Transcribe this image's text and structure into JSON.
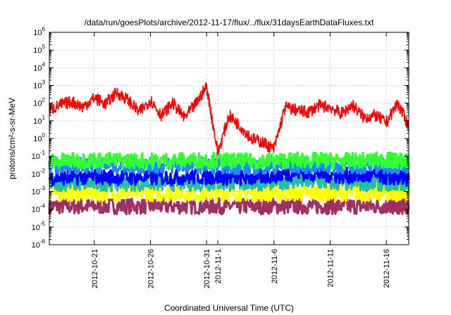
{
  "chart_data": {
    "type": "line",
    "title": "/data/run/goesPlots/archive/2012-11-17/flux/../flux/31daysEarthDataFluxes.txt",
    "xlabel": "Coordinated Universal Time (UTC)",
    "ylabel": "protons/cm²-s-sr-MeV",
    "yscale": "log",
    "grid": true,
    "xlim": [
      "2012-10-17",
      "2012-11-18"
    ],
    "ylim": [
      1e-06,
      1000000.0
    ],
    "x_ticks": [
      {
        "date": "2012-10-21",
        "label": "2012-10-21"
      },
      {
        "date": "2012-10-26",
        "label": "2012-10-26"
      },
      {
        "date": "2012-10-31",
        "label": "2012-10-31"
      },
      {
        "date": "2012-11-01",
        "label": "2012-11-1"
      },
      {
        "date": "2012-11-06",
        "label": "2012-11-6"
      },
      {
        "date": "2012-11-11",
        "label": "2012-11-11"
      },
      {
        "date": "2012-11-16",
        "label": "2012-11-16"
      }
    ],
    "y_ticks": [
      {
        "value": 1e-06,
        "exp": "-6"
      },
      {
        "value": 1e-05,
        "exp": "-5"
      },
      {
        "value": 0.0001,
        "exp": "-4"
      },
      {
        "value": 0.001,
        "exp": "-3"
      },
      {
        "value": 0.01,
        "exp": "-2"
      },
      {
        "value": 0.1,
        "exp": "-1"
      },
      {
        "value": 1,
        "exp": "0"
      },
      {
        "value": 10,
        "exp": "1"
      },
      {
        "value": 100,
        "exp": "2"
      },
      {
        "value": 1000,
        "exp": "3"
      },
      {
        "value": 10000.0,
        "exp": "4"
      },
      {
        "value": 100000.0,
        "exp": "5"
      },
      {
        "value": 1000000.0,
        "exp": "6"
      }
    ],
    "series": [
      {
        "color": "#ff0000",
        "x": [
          "2012-10-17",
          "2012-10-18",
          "2012-10-19",
          "2012-10-20",
          "2012-10-21",
          "2012-10-22",
          "2012-10-23",
          "2012-10-24",
          "2012-10-25",
          "2012-10-26",
          "2012-10-27",
          "2012-10-28",
          "2012-10-29",
          "2012-10-30",
          "2012-10-31",
          "2012-11-01",
          "2012-11-02",
          "2012-11-03",
          "2012-11-04",
          "2012-11-05",
          "2012-11-06",
          "2012-11-07",
          "2012-11-08",
          "2012-11-09",
          "2012-11-10",
          "2012-11-11",
          "2012-11-12",
          "2012-11-13",
          "2012-11-14",
          "2012-11-15",
          "2012-11-16",
          "2012-11-17",
          "2012-11-18"
        ],
        "y": [
          40,
          80,
          120,
          60,
          200,
          90,
          400,
          150,
          30,
          150,
          20,
          100,
          15,
          80,
          900,
          0.15,
          20,
          5,
          1,
          0.6,
          0.25,
          60,
          40,
          30,
          70,
          60,
          25,
          80,
          15,
          20,
          8,
          100,
          5
        ]
      },
      {
        "color": "#33ff33",
        "x": [
          "2012-10-17",
          "2012-10-21",
          "2012-10-26",
          "2012-10-31",
          "2012-11-04",
          "2012-11-08",
          "2012-11-12",
          "2012-11-16",
          "2012-11-18"
        ],
        "y": [
          0.05,
          0.06,
          0.055,
          0.06,
          0.05,
          0.06,
          0.055,
          0.06,
          0.05
        ]
      },
      {
        "color": "#1e8cff",
        "x": [
          "2012-10-17",
          "2012-10-21",
          "2012-10-26",
          "2012-10-31",
          "2012-11-04",
          "2012-11-08",
          "2012-11-12",
          "2012-11-16",
          "2012-11-18"
        ],
        "y": [
          0.025,
          0.03,
          0.028,
          0.03,
          0.025,
          0.03,
          0.028,
          0.03,
          0.025
        ]
      },
      {
        "color": "#0000ff",
        "x": [
          "2012-10-17",
          "2012-10-21",
          "2012-10-26",
          "2012-10-31",
          "2012-11-04",
          "2012-11-08",
          "2012-11-12",
          "2012-11-16",
          "2012-11-18"
        ],
        "y": [
          0.006,
          0.007,
          0.006,
          0.007,
          0.006,
          0.012,
          0.008,
          0.007,
          0.006
        ]
      },
      {
        "color": "#20c0a0",
        "x": [
          "2012-10-17",
          "2012-10-21",
          "2012-10-26",
          "2012-10-31",
          "2012-11-04",
          "2012-11-08",
          "2012-11-12",
          "2012-11-16",
          "2012-11-18"
        ],
        "y": [
          0.003,
          0.003,
          0.003,
          0.003,
          0.003,
          0.004,
          0.003,
          0.003,
          0.003
        ]
      },
      {
        "color": "#ffff00",
        "x": [
          "2012-10-17",
          "2012-10-21",
          "2012-10-26",
          "2012-10-31",
          "2012-11-04",
          "2012-11-08",
          "2012-11-12",
          "2012-11-16",
          "2012-11-18"
        ],
        "y": [
          0.0008,
          0.0008,
          0.0008,
          0.0008,
          0.0008,
          0.0008,
          0.0008,
          0.0008,
          0.0008
        ]
      },
      {
        "color": "#a03060",
        "x": [
          "2012-10-17",
          "2012-10-21",
          "2012-10-26",
          "2012-10-31",
          "2012-11-04",
          "2012-11-08",
          "2012-11-12",
          "2012-11-16",
          "2012-11-18"
        ],
        "y": [
          0.00015,
          0.00015,
          0.00015,
          0.00015,
          0.00015,
          0.00015,
          0.00015,
          0.00015,
          0.00015
        ]
      }
    ]
  }
}
